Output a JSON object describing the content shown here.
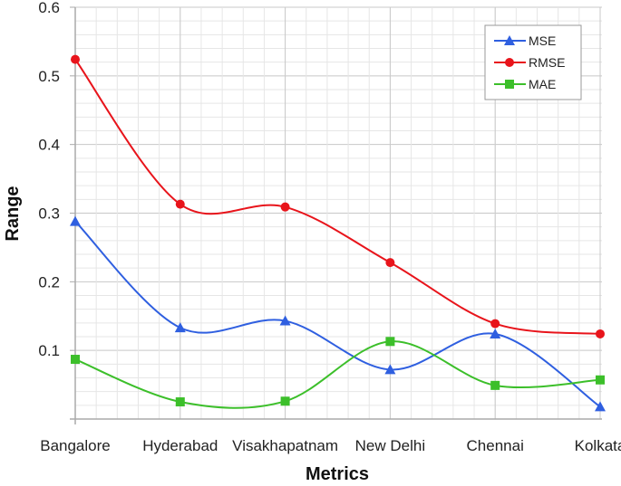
{
  "chart_data": {
    "type": "line",
    "title": "",
    "xlabel": "Metrics",
    "ylabel": "Range",
    "categories": [
      "Bangalore",
      "Hyderabad",
      "Visakhapatnam",
      "New Delhi",
      "Chennai",
      "Kolkata"
    ],
    "ylim": [
      0,
      0.6
    ],
    "yticks": [
      "0.1",
      "0.2",
      "0.3",
      "0.4",
      "0.5",
      "0.6"
    ],
    "grid": true,
    "smooth": true,
    "legend_position": "top-right",
    "series": [
      {
        "name": "MSE",
        "color": "#2f5fe0",
        "marker": "triangle",
        "values": [
          0.288,
          0.133,
          0.143,
          0.072,
          0.124,
          0.018
        ]
      },
      {
        "name": "RMSE",
        "color": "#e8141b",
        "marker": "circle",
        "values": [
          0.524,
          0.313,
          0.309,
          0.228,
          0.139,
          0.124
        ]
      },
      {
        "name": "MAE",
        "color": "#3cbf2a",
        "marker": "square",
        "values": [
          0.087,
          0.025,
          0.026,
          0.113,
          0.049,
          0.057
        ]
      }
    ]
  }
}
